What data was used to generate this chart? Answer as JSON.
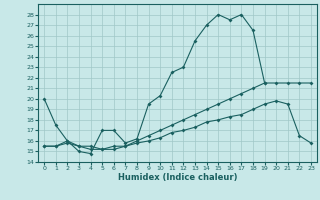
{
  "xlabel": "Humidex (Indice chaleur)",
  "bg_color": "#c8e8e8",
  "line_color": "#1a6060",
  "grid_color": "#a0c8c8",
  "xlim": [
    -0.5,
    23.5
  ],
  "ylim": [
    14,
    29
  ],
  "xticks": [
    0,
    1,
    2,
    3,
    4,
    5,
    6,
    7,
    8,
    9,
    10,
    11,
    12,
    13,
    14,
    15,
    16,
    17,
    18,
    19,
    20,
    21,
    22,
    23
  ],
  "yticks": [
    14,
    15,
    16,
    17,
    18,
    19,
    20,
    21,
    22,
    23,
    24,
    25,
    26,
    27,
    28
  ],
  "line1_x": [
    0,
    1,
    2,
    3,
    4,
    5,
    6,
    7,
    8,
    9,
    10,
    11,
    12,
    13,
    14,
    15,
    16,
    17,
    18,
    19,
    20,
    21,
    22,
    23
  ],
  "line1_y": [
    20,
    17.5,
    16,
    15,
    14.8,
    17,
    17,
    15.8,
    16.2,
    19.5,
    20.3,
    22.5,
    23,
    25.5,
    27,
    28,
    27.5,
    28,
    26.5,
    21.5,
    null,
    null,
    null,
    null
  ],
  "line2_x": [
    0,
    1,
    2,
    3,
    4,
    5,
    6,
    7,
    8,
    9,
    10,
    11,
    12,
    13,
    14,
    15,
    16,
    17,
    18,
    19,
    20,
    21,
    22,
    23
  ],
  "line2_y": [
    15.5,
    15.5,
    16,
    15.5,
    15.5,
    15.2,
    15.2,
    15.5,
    16,
    16.5,
    17,
    17.5,
    18,
    18.5,
    19,
    19.5,
    20,
    20.5,
    21,
    21.5,
    21.5,
    21.5,
    21.5,
    21.5
  ],
  "line3_x": [
    0,
    1,
    2,
    3,
    4,
    5,
    6,
    7,
    8,
    9,
    10,
    11,
    12,
    13,
    14,
    15,
    16,
    17,
    18,
    19,
    20,
    21,
    22,
    23
  ],
  "line3_y": [
    15.5,
    15.5,
    15.8,
    15.5,
    15.2,
    15.2,
    15.5,
    15.5,
    15.8,
    16,
    16.3,
    16.8,
    17,
    17.3,
    17.8,
    18,
    18.3,
    18.5,
    19,
    19.5,
    19.8,
    19.5,
    16.5,
    15.8
  ]
}
